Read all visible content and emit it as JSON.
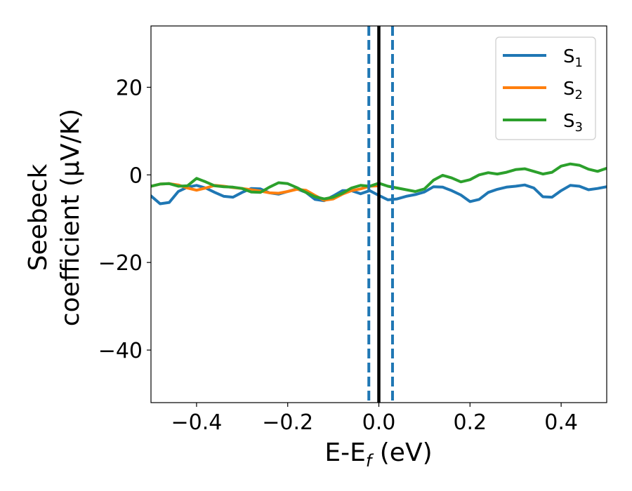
{
  "chart_data": {
    "type": "line",
    "xlabel": "E-E",
    "xlabel_sub": "f",
    "xlabel_unit": " (eV)",
    "ylabel_line1": "Seebeck",
    "ylabel_line2": "coefficient  (μV/K)",
    "xlim": [
      -0.5,
      0.5
    ],
    "ylim": [
      -52,
      34
    ],
    "xticks": [
      -0.4,
      -0.2,
      0.0,
      0.2,
      0.4
    ],
    "xtick_labels": [
      "−0.4",
      "−0.2",
      "0.0",
      "0.2",
      "0.4"
    ],
    "yticks": [
      -40,
      -20,
      0,
      20
    ],
    "ytick_labels": [
      "−40",
      "−20",
      "0",
      "20"
    ],
    "grid": false,
    "legend_position": "top-right",
    "vlines": [
      {
        "x": -0.022,
        "style": "dashed",
        "color": "#1f77b4"
      },
      {
        "x": 0.0,
        "style": "solid",
        "color": "#000000"
      },
      {
        "x": 0.03,
        "style": "dashed",
        "color": "#1f77b4"
      }
    ],
    "series": [
      {
        "name": "S",
        "sub": "1",
        "color": "#1f77b4",
        "x": [
          -0.5,
          -0.48,
          -0.46,
          -0.44,
          -0.42,
          -0.4,
          -0.38,
          -0.36,
          -0.34,
          -0.32,
          -0.3,
          -0.28,
          -0.26,
          -0.24,
          -0.22,
          -0.2,
          -0.18,
          -0.16,
          -0.14,
          -0.12,
          -0.1,
          -0.08,
          -0.06,
          -0.04,
          -0.02,
          0.0,
          0.02,
          0.04,
          0.06,
          0.08,
          0.1,
          0.12,
          0.14,
          0.16,
          0.18,
          0.2,
          0.22,
          0.24,
          0.26,
          0.28,
          0.3,
          0.32,
          0.34,
          0.36,
          0.38,
          0.4,
          0.42,
          0.44,
          0.46,
          0.48,
          0.5
        ],
        "y": [
          -4.8,
          -6.6,
          -6.3,
          -3.8,
          -2.8,
          -2.4,
          -3.0,
          -4.0,
          -4.9,
          -5.1,
          -4.0,
          -3.1,
          -3.2,
          -4.1,
          -4.4,
          -3.8,
          -3.2,
          -4.0,
          -5.6,
          -5.9,
          -4.8,
          -3.6,
          -3.6,
          -4.3,
          -3.6,
          -4.7,
          -5.7,
          -5.5,
          -4.9,
          -4.5,
          -3.9,
          -2.7,
          -2.8,
          -3.6,
          -4.6,
          -6.1,
          -5.6,
          -4.0,
          -3.3,
          -2.8,
          -2.6,
          -2.3,
          -3.0,
          -5.0,
          -5.1,
          -3.6,
          -2.4,
          -2.6,
          -3.4,
          -3.1,
          -2.7
        ]
      },
      {
        "name": "S",
        "sub": "2",
        "color": "#ff7f0e",
        "x": [
          -0.5,
          -0.48,
          -0.46,
          -0.44,
          -0.42,
          -0.4,
          -0.38,
          -0.36,
          -0.34,
          -0.32,
          -0.3,
          -0.28,
          -0.26,
          -0.24,
          -0.22,
          -0.2,
          -0.18,
          -0.16,
          -0.14,
          -0.12,
          -0.1,
          -0.08,
          -0.06,
          -0.04,
          -0.02,
          0.0
        ],
        "y": [
          -2.6,
          -2.1,
          -2.0,
          -2.3,
          -3.0,
          -3.5,
          -3.0,
          -2.4,
          -2.6,
          -2.9,
          -3.1,
          -3.4,
          -3.7,
          -4.1,
          -4.2,
          -3.8,
          -3.3,
          -3.5,
          -4.7,
          -5.8,
          -5.5,
          -4.4,
          -3.6,
          -3.2,
          -2.6,
          -2.5
        ]
      },
      {
        "name": "S",
        "sub": "3",
        "color": "#2ca02c",
        "x": [
          -0.5,
          -0.48,
          -0.46,
          -0.44,
          -0.42,
          -0.4,
          -0.38,
          -0.36,
          -0.34,
          -0.32,
          -0.3,
          -0.28,
          -0.26,
          -0.24,
          -0.22,
          -0.2,
          -0.18,
          -0.16,
          -0.14,
          -0.12,
          -0.1,
          -0.08,
          -0.06,
          -0.04,
          -0.02,
          0.0,
          0.02,
          0.04,
          0.06,
          0.08,
          0.1,
          0.12,
          0.14,
          0.16,
          0.18,
          0.2,
          0.22,
          0.24,
          0.26,
          0.28,
          0.3,
          0.32,
          0.34,
          0.36,
          0.38,
          0.4,
          0.42,
          0.44,
          0.46,
          0.48,
          0.5
        ],
        "y": [
          -2.6,
          -2.1,
          -2.0,
          -2.6,
          -2.5,
          -0.8,
          -1.6,
          -2.5,
          -2.7,
          -2.8,
          -3.1,
          -3.9,
          -4.0,
          -2.8,
          -1.8,
          -2.0,
          -2.9,
          -4.0,
          -5.0,
          -5.5,
          -5.1,
          -4.2,
          -3.0,
          -2.4,
          -2.6,
          -1.9,
          -2.6,
          -3.0,
          -3.4,
          -3.8,
          -3.2,
          -1.2,
          -0.1,
          -0.7,
          -1.6,
          -1.1,
          0.0,
          0.5,
          0.2,
          0.6,
          1.2,
          1.4,
          0.8,
          0.2,
          0.6,
          2.0,
          2.5,
          2.2,
          1.3,
          0.8,
          1.5
        ]
      }
    ]
  }
}
